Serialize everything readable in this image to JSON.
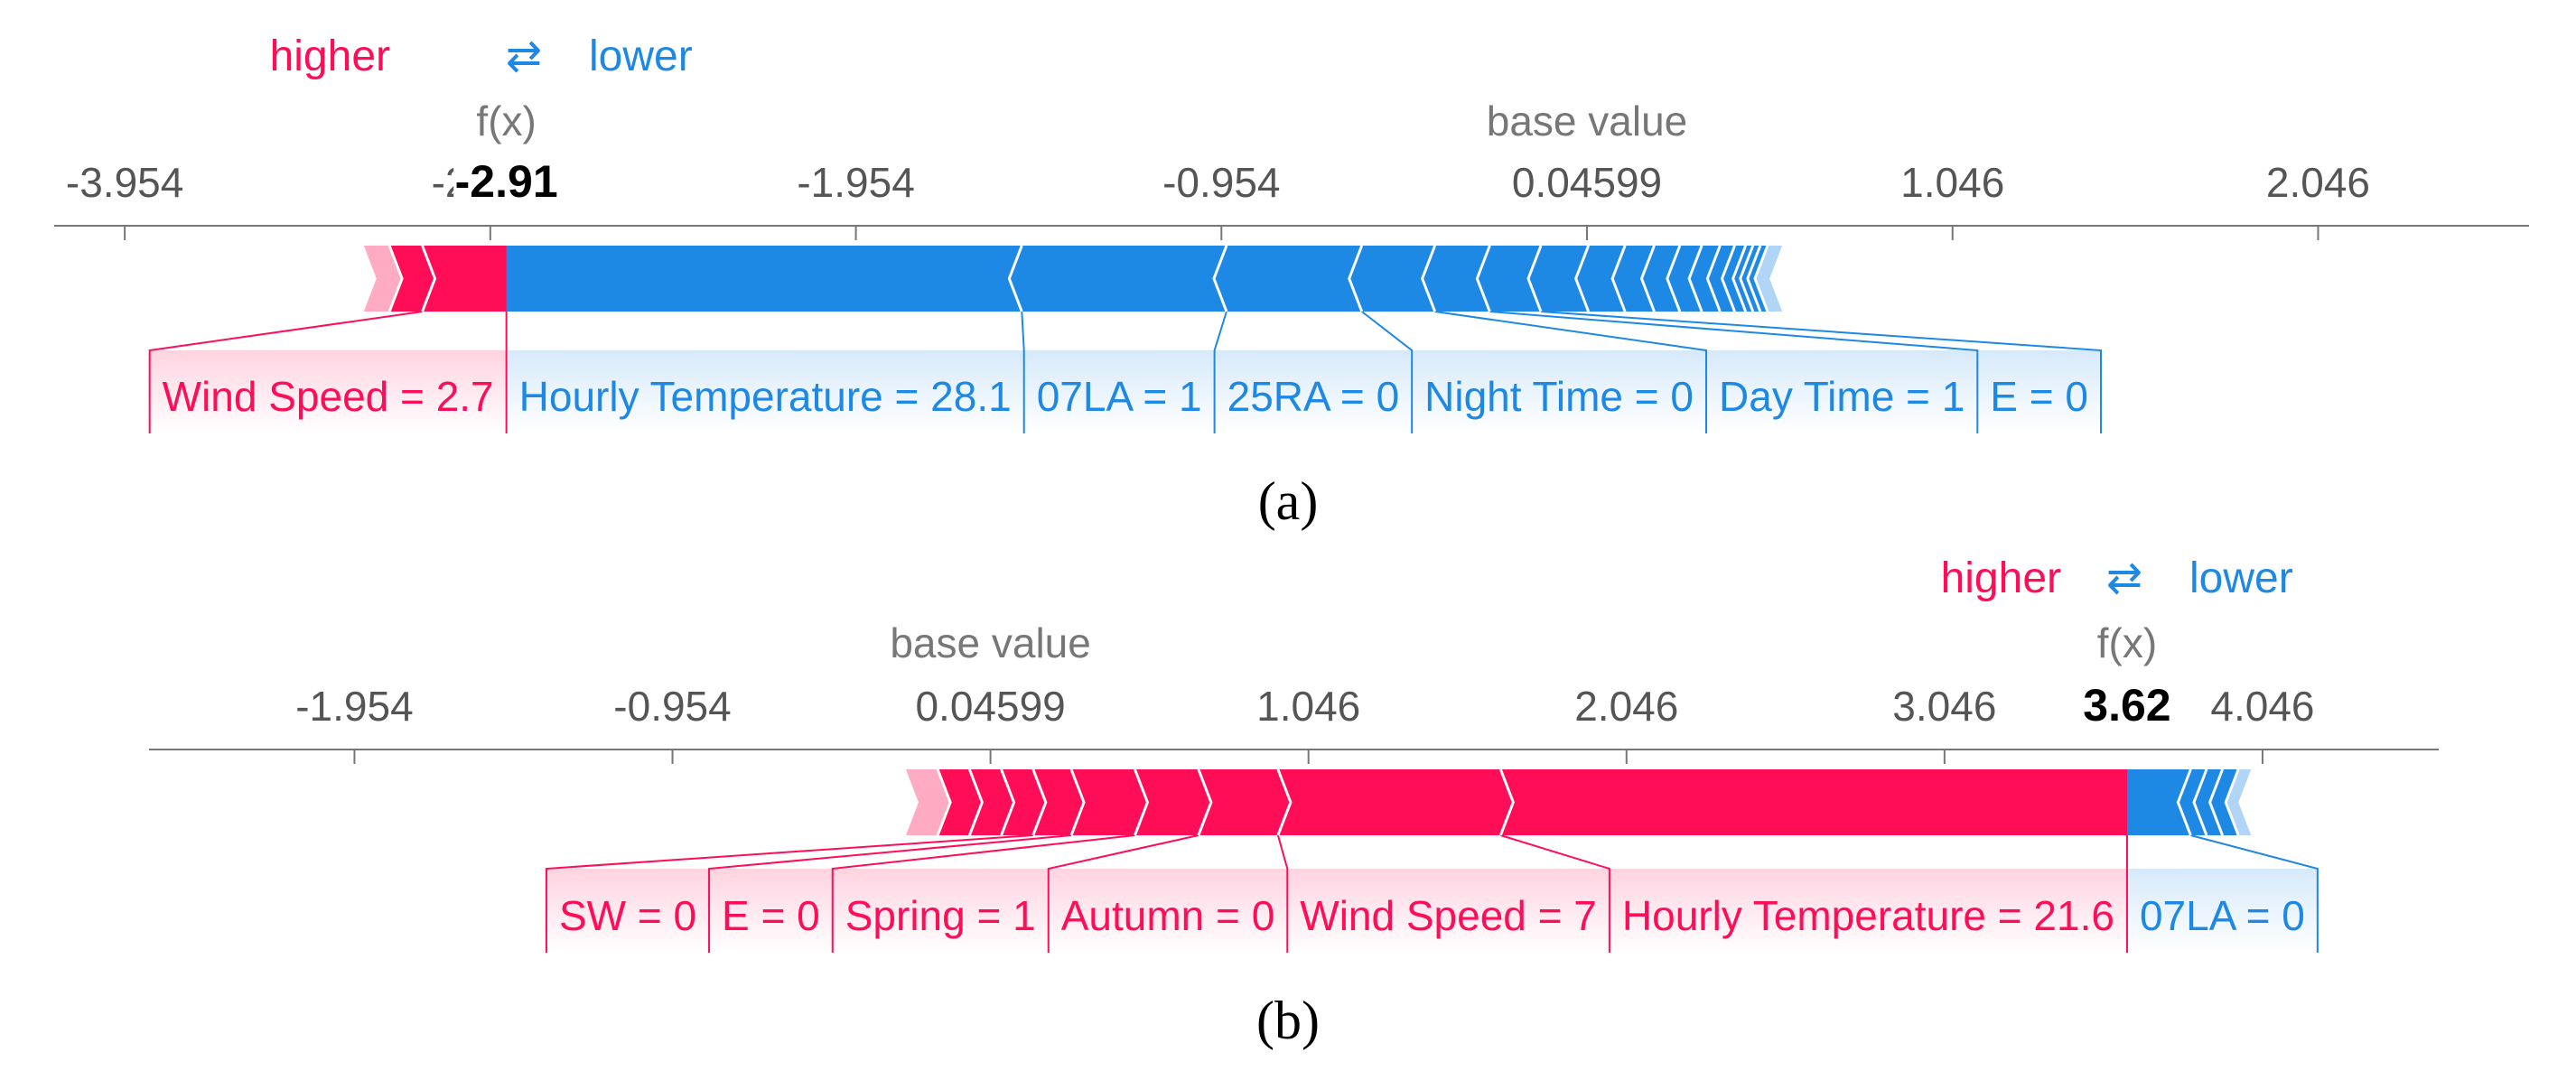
{
  "legend": {
    "higher": "higher",
    "arrow": "⇄",
    "lower": "lower"
  },
  "colors": {
    "positive": "#ff0d57",
    "negative": "#1e88e5",
    "axis": "#777777",
    "fx_text": "#000000",
    "tick_text": "#555555"
  },
  "chart_data": [
    {
      "type": "force",
      "caption": "(a)",
      "fx_label": "f(x)",
      "fx_value": -2.91,
      "fx_display": "-2.91",
      "base_value_label": "base value",
      "base_value": 0.04599,
      "ticks": [
        -3.954,
        -2.954,
        -1.954,
        -0.954,
        0.04599,
        1.046,
        2.046
      ],
      "tick_labels": [
        "-3.954",
        "-2.954",
        "-1.954",
        "-0.954",
        "0.04599",
        "1.046",
        "2.046"
      ],
      "xlim": [
        -4.147,
        2.623
      ],
      "features_higher": [
        {
          "label": "Wind Speed = 2.7",
          "value": 0.23
        },
        {
          "label": "",
          "value": 0.09
        },
        {
          "label": "",
          "value": 0.07
        }
      ],
      "features_lower": [
        {
          "label": "Hourly Temperature = 28.1",
          "value": -1.41
        },
        {
          "label": "07LA = 1",
          "value": -0.56
        },
        {
          "label": "25RA = 0",
          "value": -0.37
        },
        {
          "label": "Night Time = 0",
          "value": -0.2
        },
        {
          "label": "Day Time = 1",
          "value": -0.15
        },
        {
          "label": "E = 0",
          "value": -0.14
        },
        {
          "label": "",
          "value": -0.13
        },
        {
          "label": "",
          "value": -0.1
        },
        {
          "label": "",
          "value": -0.08
        },
        {
          "label": "",
          "value": -0.07
        },
        {
          "label": "",
          "value": -0.06
        },
        {
          "label": "",
          "value": -0.05
        },
        {
          "label": "",
          "value": -0.04
        },
        {
          "label": "",
          "value": -0.03
        },
        {
          "label": "",
          "value": -0.02
        },
        {
          "label": "",
          "value": -0.02
        },
        {
          "label": "",
          "value": -0.02
        },
        {
          "label": "",
          "value": -0.04
        }
      ]
    },
    {
      "type": "force",
      "caption": "(b)",
      "fx_label": "f(x)",
      "fx_value": 3.62,
      "fx_display": "3.62",
      "base_value_label": "base value",
      "base_value": 0.04599,
      "ticks": [
        -1.954,
        -0.954,
        0.04599,
        1.046,
        2.046,
        3.046,
        4.046
      ],
      "tick_labels": [
        "-1.954",
        "-0.954",
        "0.04599",
        "1.046",
        "2.046",
        "3.046",
        "4.046"
      ],
      "xlim": [
        -2.6,
        4.6
      ],
      "features_higher": [
        {
          "label": "Hourly Temperature = 21.6",
          "value": 1.97
        },
        {
          "label": "Wind Speed = 7",
          "value": 0.7
        },
        {
          "label": "Autumn = 0",
          "value": 0.25
        },
        {
          "label": "Spring = 1",
          "value": 0.2
        },
        {
          "label": "E = 0",
          "value": 0.2
        },
        {
          "label": "SW = 0",
          "value": 0.12
        },
        {
          "label": "",
          "value": 0.1
        },
        {
          "label": "",
          "value": 0.1
        },
        {
          "label": "",
          "value": 0.1
        },
        {
          "label": "",
          "value": 0.1
        }
      ],
      "features_lower": [
        {
          "label": "07LA = 0",
          "value": -0.2
        },
        {
          "label": "",
          "value": -0.05
        },
        {
          "label": "",
          "value": -0.05
        },
        {
          "label": "",
          "value": -0.05
        },
        {
          "label": "",
          "value": -0.04
        }
      ]
    }
  ]
}
